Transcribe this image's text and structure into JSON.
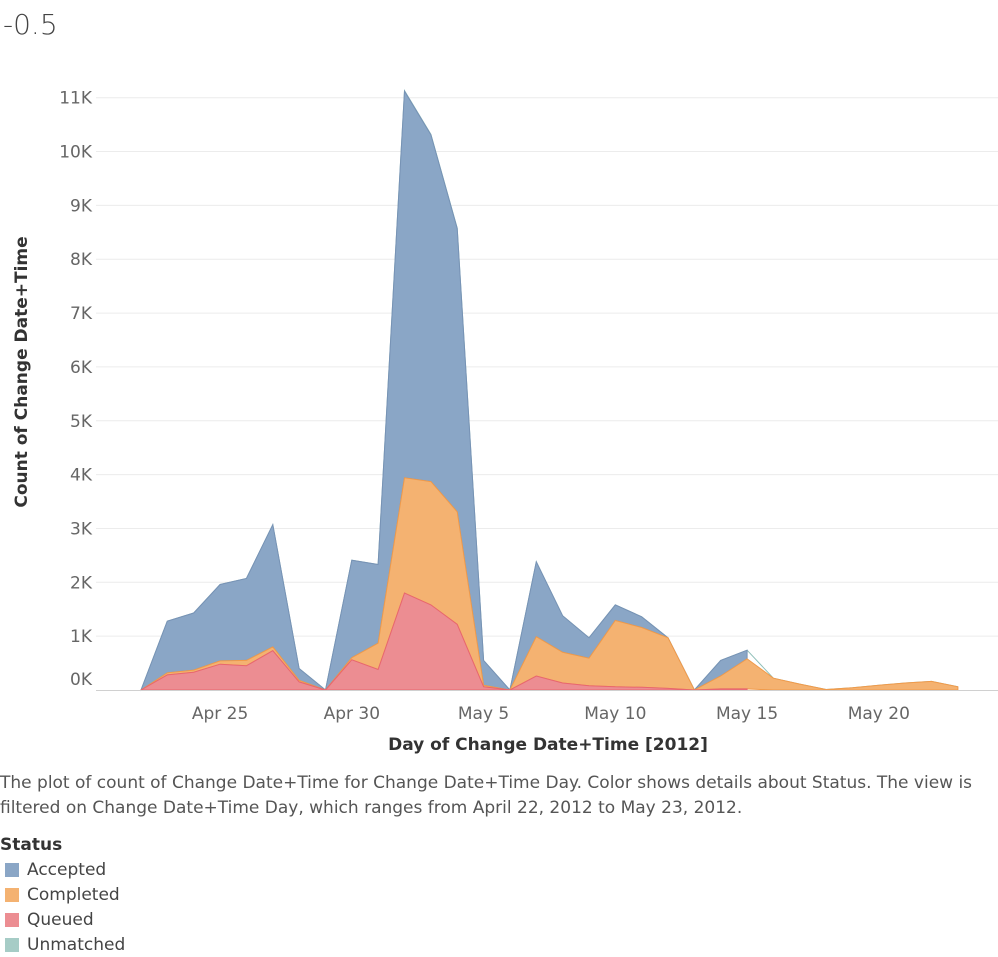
{
  "top_value": "-0.5",
  "caption": "The plot of count of Change Date+Time for Change Date+Time Day.  Color shows details about Status. The view is filtered on Change Date+Time Day, which ranges from April 22, 2012 to May 23, 2012.",
  "legend": {
    "title": "Status",
    "items": [
      {
        "label": "Accepted",
        "color": "#8aa6c6"
      },
      {
        "label": "Completed",
        "color": "#f4b271"
      },
      {
        "label": "Queued",
        "color": "#ec8d92"
      },
      {
        "label": "Unmatched",
        "color": "#a6ccc6"
      }
    ]
  },
  "chart_data": {
    "type": "area",
    "stacked": true,
    "xlabel": "Day of Change Date+Time [2012]",
    "ylabel": "Count of Change Date+Time",
    "x_tick_labels": [
      "Apr 25",
      "Apr 30",
      "May 5",
      "May 10",
      "May 15",
      "May 20"
    ],
    "x_tick_dates": [
      "2012-04-25",
      "2012-04-30",
      "2012-05-05",
      "2012-05-10",
      "2012-05-15",
      "2012-05-20"
    ],
    "y_tick_labels": [
      "0K",
      "1K",
      "2K",
      "3K",
      "4K",
      "5K",
      "6K",
      "7K",
      "8K",
      "9K",
      "10K",
      "11K"
    ],
    "ylim": [
      0,
      11700
    ],
    "grid": true,
    "x": [
      "2012-04-22",
      "2012-04-23",
      "2012-04-24",
      "2012-04-25",
      "2012-04-26",
      "2012-04-27",
      "2012-04-28",
      "2012-04-29",
      "2012-04-30",
      "2012-05-01",
      "2012-05-02",
      "2012-05-03",
      "2012-05-04",
      "2012-05-05",
      "2012-05-06",
      "2012-05-07",
      "2012-05-08",
      "2012-05-09",
      "2012-05-10",
      "2012-05-11",
      "2012-05-12",
      "2012-05-13",
      "2012-05-14",
      "2012-05-15",
      "2012-05-16",
      "2012-05-17",
      "2012-05-18",
      "2012-05-19",
      "2012-05-20",
      "2012-05-21",
      "2012-05-22",
      "2012-05-23"
    ],
    "series": [
      {
        "name": "Queued",
        "values": [
          0,
          280,
          330,
          480,
          450,
          730,
          150,
          0,
          560,
          380,
          1800,
          1580,
          1220,
          60,
          0,
          260,
          130,
          80,
          60,
          50,
          30,
          0,
          20,
          20,
          null,
          null,
          null,
          null,
          null,
          null,
          null,
          null
        ]
      },
      {
        "name": "Completed",
        "values": [
          0,
          40,
          40,
          60,
          100,
          70,
          30,
          0,
          40,
          490,
          2140,
          2290,
          2090,
          30,
          0,
          730,
          570,
          510,
          1230,
          1110,
          940,
          0,
          240,
          560,
          220,
          110,
          10,
          40,
          90,
          130,
          160,
          60
        ]
      },
      {
        "name": "Accepted",
        "values": [
          0,
          960,
          1060,
          1420,
          1520,
          2270,
          220,
          0,
          1810,
          1460,
          7180,
          6440,
          5260,
          460,
          0,
          1390,
          680,
          380,
          290,
          200,
          0,
          0,
          290,
          160,
          null,
          null,
          null,
          null,
          null,
          null,
          null,
          null
        ]
      },
      {
        "name": "Unmatched",
        "values": [
          0,
          0,
          0,
          0,
          0,
          0,
          0,
          0,
          0,
          0,
          10,
          10,
          10,
          0,
          0,
          0,
          0,
          0,
          0,
          0,
          0,
          0,
          0,
          0,
          0,
          0,
          0,
          0,
          0,
          0,
          0,
          0
        ]
      }
    ]
  }
}
